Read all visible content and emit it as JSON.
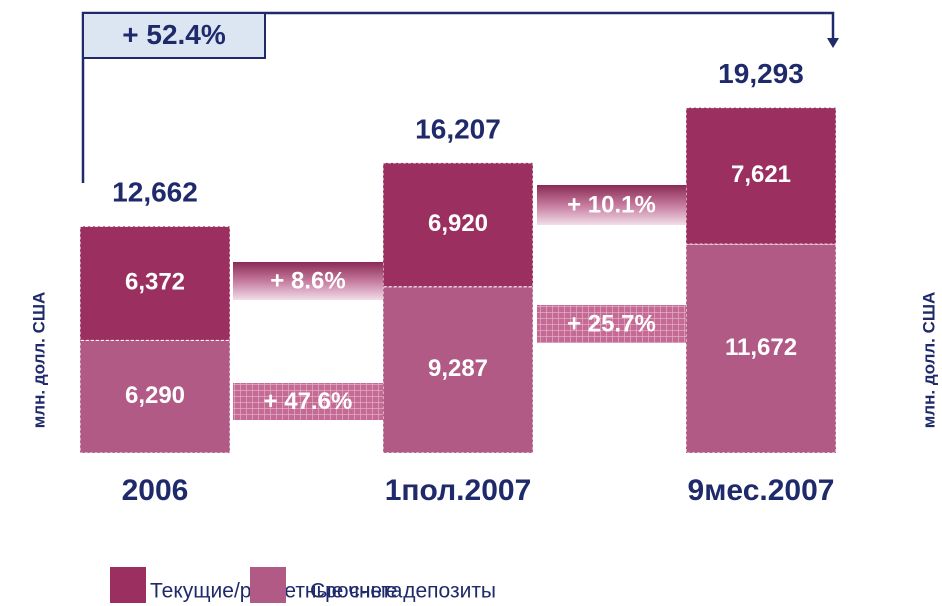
{
  "chart_data": {
    "type": "stacked_bar",
    "categories": [
      "2006",
      "1пол.2007",
      "9мес.2007"
    ],
    "series": [
      {
        "name": "Срочные депозиты",
        "color": "#b05a85",
        "values": [
          6290,
          9287,
          11672
        ],
        "value_labels": [
          "6,290",
          "9,287",
          "11,672"
        ]
      },
      {
        "name": "Текущие/расчетные счета",
        "color": "#9b3060",
        "values": [
          6372,
          6920,
          7621
        ],
        "value_labels": [
          "6,372",
          "6,920",
          "7,621"
        ]
      }
    ],
    "totals": {
      "values": [
        12662,
        16207,
        19293
      ],
      "value_labels": [
        "12,662",
        "16,207",
        "19,293"
      ]
    },
    "annotations": [
      "+ 52.4%",
      "+ 8.6%",
      "+ 47.6%",
      "+ 10.1%",
      "+ 25.7%"
    ],
    "ylabel": "млн. долл. США",
    "ylim": [
      0,
      20000
    ],
    "legend": "bottom"
  }
}
